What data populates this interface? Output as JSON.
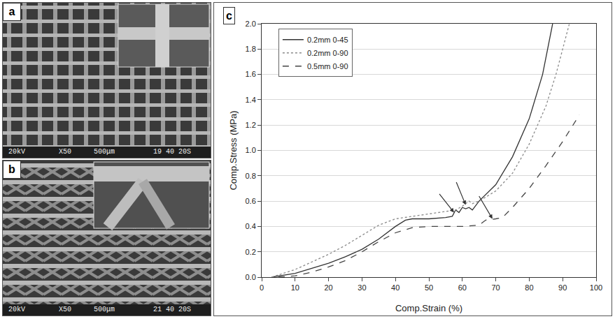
{
  "panels": [
    {
      "label": "a",
      "info": [
        "20kV",
        "X50",
        "500μm",
        "19 40 20S"
      ]
    },
    {
      "label": "b",
      "info": [
        "20kV",
        "X50",
        "500μm",
        "21 40 20S"
      ]
    }
  ],
  "chart_data": {
    "label": "c",
    "type": "line",
    "x_label": "Comp.Strain (%)",
    "y_label": "Comp.Stress (MPa)",
    "xlim": [
      0,
      100
    ],
    "xticks": [
      0,
      10,
      20,
      30,
      40,
      50,
      60,
      70,
      80,
      90,
      100
    ],
    "ylim": [
      0,
      2.0
    ],
    "yticks": [
      {
        "value": 0,
        "label": "0.0"
      },
      0.2,
      0.4,
      0.6,
      0.8,
      {
        "value": 1,
        "label": "1.0"
      },
      1.2,
      1.4,
      1.6,
      1.8,
      {
        "value": 2,
        "label": "2.0"
      }
    ],
    "grid": "y",
    "legend": "upper left",
    "series": [
      {
        "name": "0.2mm 0-45",
        "color": "#333333",
        "line_style": "solid",
        "x": [
          3,
          10,
          15,
          20,
          25,
          30,
          35,
          40,
          43,
          45,
          50,
          55,
          57,
          58,
          59,
          60,
          61,
          62,
          63,
          65,
          70,
          75,
          80,
          84,
          87
        ],
        "values": [
          0,
          0.03,
          0.07,
          0.11,
          0.16,
          0.22,
          0.3,
          0.4,
          0.45,
          0.46,
          0.46,
          0.47,
          0.48,
          0.53,
          0.51,
          0.55,
          0.54,
          0.55,
          0.53,
          0.6,
          0.73,
          0.95,
          1.25,
          1.6,
          2.0
        ]
      },
      {
        "name": "0.2mm 0-90",
        "color": "#8a8a8a",
        "line_style": "dot",
        "x": [
          3,
          10,
          15,
          20,
          25,
          30,
          35,
          40,
          45,
          50,
          55,
          58,
          60,
          62,
          63,
          65,
          70,
          75,
          80,
          85,
          88,
          92
        ],
        "values": [
          0,
          0.06,
          0.12,
          0.18,
          0.25,
          0.33,
          0.41,
          0.46,
          0.48,
          0.5,
          0.52,
          0.53,
          0.56,
          0.6,
          0.58,
          0.6,
          0.68,
          0.82,
          1.05,
          1.35,
          1.6,
          2.0
        ]
      },
      {
        "name": "0.5mm 0-90",
        "color": "#444444",
        "line_style": "dash",
        "x": [
          5,
          10,
          15,
          20,
          25,
          30,
          35,
          40,
          45,
          50,
          55,
          60,
          65,
          67,
          70,
          72,
          75,
          80,
          85,
          90,
          95
        ],
        "values": [
          0,
          0.01,
          0.04,
          0.08,
          0.13,
          0.2,
          0.28,
          0.35,
          0.39,
          0.4,
          0.4,
          0.4,
          0.41,
          0.45,
          0.46,
          0.47,
          0.55,
          0.7,
          0.88,
          1.07,
          1.28
        ]
      }
    ],
    "arrows": [
      {
        "x": 57.5,
        "y": 0.51
      },
      {
        "x": 61,
        "y": 0.57
      },
      {
        "x": 69,
        "y": 0.46
      }
    ]
  }
}
